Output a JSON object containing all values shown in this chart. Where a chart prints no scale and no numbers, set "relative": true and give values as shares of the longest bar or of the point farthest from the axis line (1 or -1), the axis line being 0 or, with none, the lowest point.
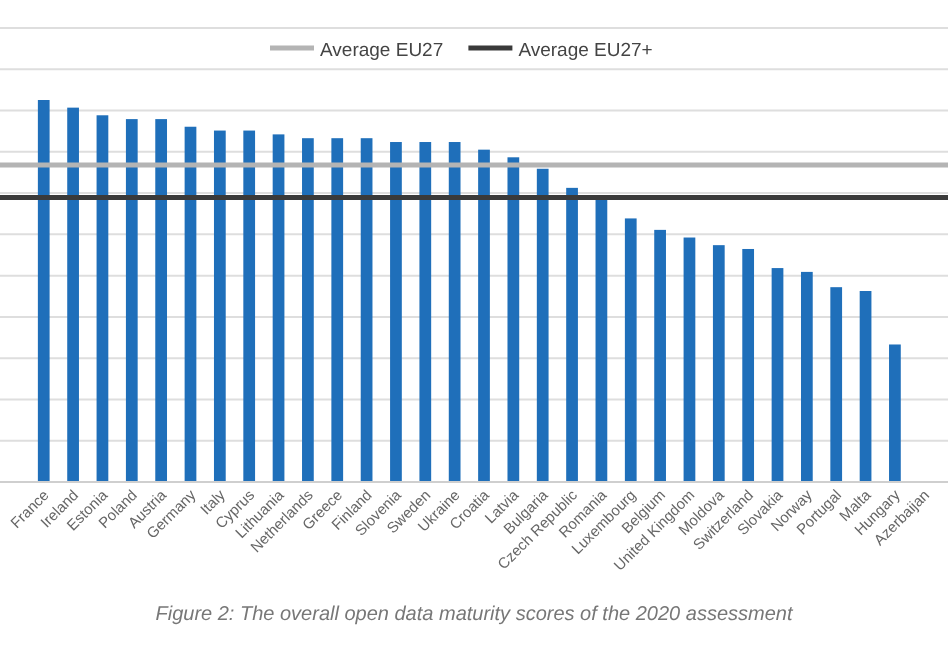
{
  "chart_data": {
    "type": "bar",
    "relative": true,
    "color": "#1f6fba",
    "grid": "y",
    "legend": "top",
    "categories": [
      "France",
      "Ireland",
      "Estonia",
      "Poland",
      "Austria",
      "Germany",
      "Italy",
      "Cyprus",
      "Lithuania",
      "Netherlands",
      "Greece",
      "Finland",
      "Slovenia",
      "Sweden",
      "Ukraine",
      "Croatia",
      "Latvia",
      "Bulgaria",
      "Czech Republic",
      "Romania",
      "Luxembourg",
      "Belgium",
      "United Kingdom",
      "Moldova",
      "Switzerland",
      "Slovakia",
      "Norway",
      "Portugal",
      "Malta",
      "Hungary",
      "Azerbaijan"
    ],
    "values": [
      1,
      0.98,
      0.96,
      0.95,
      0.95,
      0.93,
      0.92,
      0.92,
      0.91,
      0.9,
      0.9,
      0.9,
      0.89,
      0.89,
      0.89,
      0.87,
      0.85,
      0.82,
      0.77,
      0.74,
      0.69,
      0.66,
      0.64,
      0.62,
      0.61,
      0.56,
      0.55,
      0.51,
      0.5,
      0.36,
      null
    ],
    "ref_lines": [
      {
        "axis": "y",
        "value": 0.83,
        "label": "Average EU27",
        "color": "#b4b4b4"
      },
      {
        "axis": "y",
        "value": 0.745,
        "label": "Average EU27+",
        "color": "#3a3a3a"
      }
    ],
    "annotations": [
      "Figure 2: The overall open data maturity scores of the 2020 assessment"
    ]
  }
}
